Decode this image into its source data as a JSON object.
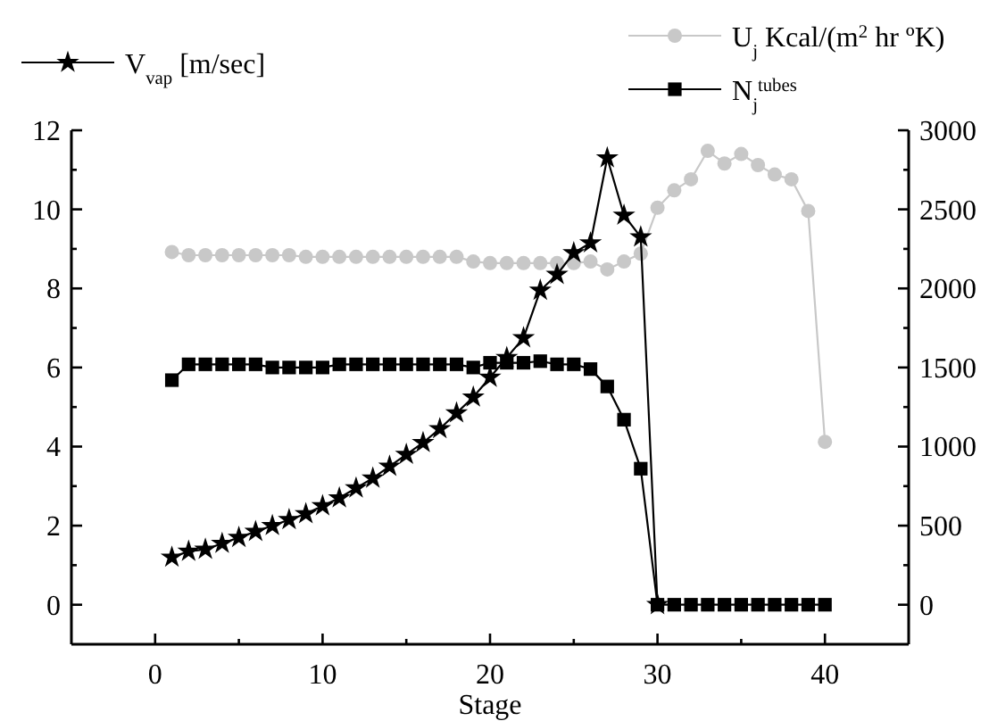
{
  "chart_data": {
    "type": "line",
    "xlabel": "Stage",
    "xlim": [
      -5,
      45
    ],
    "xticks": [
      0,
      {
        "value": 5,
        "label": null
      },
      10,
      {
        "value": 15,
        "label": null
      },
      20,
      {
        "value": 25,
        "label": null
      },
      30,
      {
        "value": 35,
        "label": null
      },
      40
    ],
    "ylim": [
      -1,
      12
    ],
    "yticks": [
      0,
      {
        "value": 1,
        "label": null
      },
      2,
      {
        "value": 3,
        "label": null
      },
      4,
      {
        "value": 5,
        "label": null
      },
      6,
      {
        "value": 7,
        "label": null
      },
      8,
      {
        "value": 9,
        "label": null
      },
      10,
      {
        "value": 11,
        "label": null
      },
      12
    ],
    "y2lim": [
      -250,
      3000
    ],
    "y2ticks": [
      0,
      {
        "value": 250,
        "label": null
      },
      500,
      {
        "value": 750,
        "label": null
      },
      1000,
      {
        "value": 1250,
        "label": null
      },
      1500,
      {
        "value": 1750,
        "label": null
      },
      2000,
      {
        "value": 2250,
        "label": null
      },
      2500,
      {
        "value": 2750,
        "label": null
      },
      3000
    ],
    "legend": "top",
    "series": [
      {
        "name": "V$_{vap}$ [m/sec]",
        "color": "#000000",
        "marker": "star",
        "x": [
          1,
          2,
          3,
          4,
          5,
          6,
          7,
          8,
          9,
          10,
          11,
          12,
          13,
          14,
          15,
          16,
          17,
          18,
          19,
          20,
          21,
          22,
          23,
          24,
          25,
          26,
          27,
          28,
          29,
          30
        ],
        "values": [
          1.2,
          1.35,
          1.4,
          1.55,
          1.7,
          1.85,
          2,
          2.15,
          2.3,
          2.5,
          2.7,
          2.95,
          3.2,
          3.5,
          3.8,
          4.1,
          4.45,
          4.85,
          5.25,
          5.75,
          6.25,
          6.75,
          7.95,
          8.35,
          8.9,
          9.15,
          11.3,
          9.85,
          9.3,
          0
        ]
      },
      {
        "name": "U$_{j}$ Kcal/(m$^{2}$ hr ºK)",
        "color": "#c8c8c8",
        "marker": "circle",
        "axis": "y2",
        "x": [
          1,
          2,
          3,
          4,
          5,
          6,
          7,
          8,
          9,
          10,
          11,
          12,
          13,
          14,
          15,
          16,
          17,
          18,
          19,
          20,
          21,
          22,
          23,
          24,
          25,
          26,
          27,
          28,
          29,
          30,
          31,
          32,
          33,
          34,
          35,
          36,
          37,
          38,
          39,
          40
        ],
        "values": [
          2230,
          2210,
          2210,
          2210,
          2210,
          2210,
          2210,
          2210,
          2200,
          2200,
          2200,
          2200,
          2200,
          2200,
          2200,
          2200,
          2200,
          2200,
          2170,
          2160,
          2160,
          2160,
          2160,
          2160,
          2160,
          2170,
          2120,
          2170,
          2220,
          2510,
          2620,
          2690,
          2870,
          2790,
          2850,
          2780,
          2720,
          2690,
          2490,
          1030
        ]
      },
      {
        "name": "N$_{j}$$^{tubes}$",
        "color": "#000000",
        "marker": "square",
        "axis": "y2",
        "x": [
          1,
          2,
          3,
          4,
          5,
          6,
          7,
          8,
          9,
          10,
          11,
          12,
          13,
          14,
          15,
          16,
          17,
          18,
          19,
          20,
          21,
          22,
          23,
          24,
          25,
          26,
          27,
          28,
          29,
          30,
          31,
          32,
          33,
          34,
          35,
          36,
          37,
          38,
          39,
          40
        ],
        "values": [
          1420,
          1520,
          1520,
          1520,
          1520,
          1520,
          1500,
          1500,
          1500,
          1500,
          1520,
          1520,
          1520,
          1520,
          1520,
          1520,
          1520,
          1520,
          1500,
          1530,
          1530,
          1530,
          1540,
          1520,
          1520,
          1490,
          1380,
          1170,
          860,
          0,
          0,
          0,
          0,
          0,
          0,
          0,
          0,
          0,
          0,
          0
        ]
      }
    ]
  }
}
